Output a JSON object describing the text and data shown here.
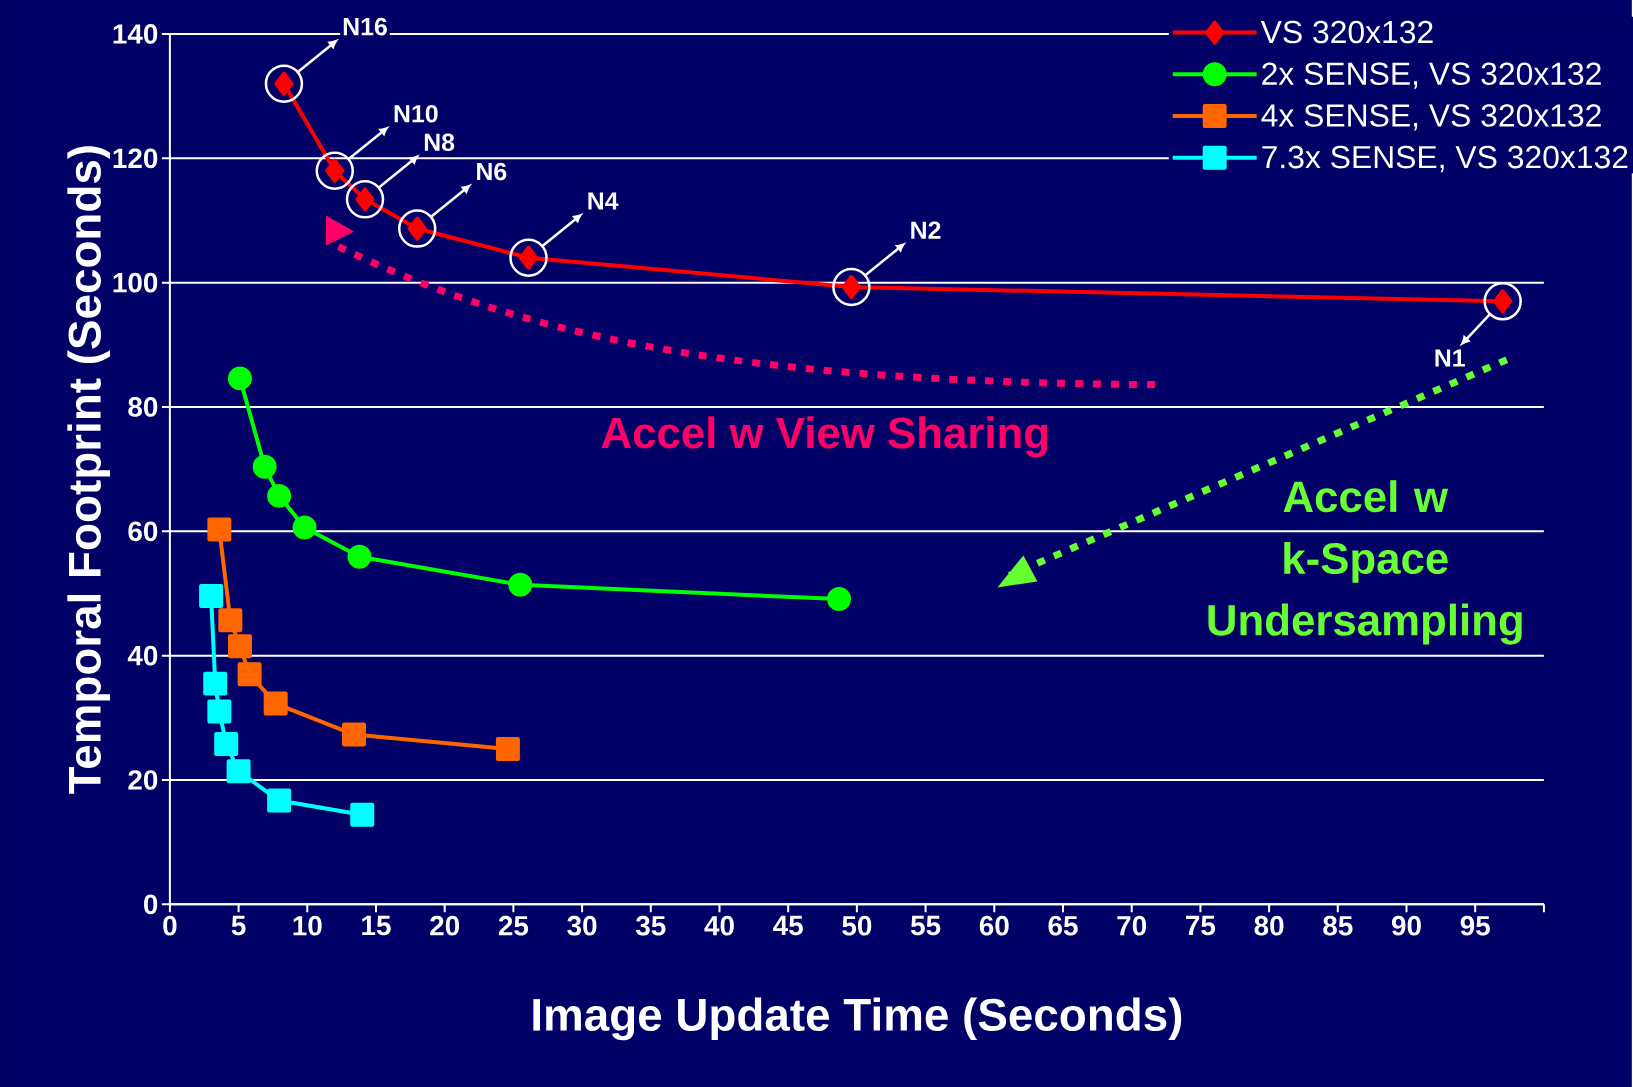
{
  "chart_data": {
    "type": "line",
    "xlabel": "Image Update Time (Seconds)",
    "ylabel": "Temporal Footprint (Seconds)",
    "xlim": [
      0,
      100
    ],
    "ylim": [
      0,
      140
    ],
    "xticks": [
      0,
      5,
      10,
      15,
      20,
      25,
      30,
      35,
      40,
      45,
      50,
      55,
      60,
      65,
      70,
      75,
      80,
      85,
      90,
      95,
      {
        "value": 100,
        "label": null
      }
    ],
    "yticks": [
      0,
      20,
      40,
      60,
      80,
      100,
      120,
      140
    ],
    "grid": "y",
    "legend": "top right",
    "series": [
      {
        "name": "VS 320x132",
        "color": "#ff0000",
        "marker": "diamond",
        "x": [
          8.3,
          12.0,
          14.2,
          18.0,
          26.1,
          49.6,
          97.0
        ],
        "values": [
          132,
          118,
          113.4,
          108.7,
          104,
          99.3,
          97
        ]
      },
      {
        "name": "2x SENSE, VS 320x132",
        "color": "#00ff00",
        "marker": "circle",
        "x": [
          5.1,
          6.9,
          7.95,
          9.8,
          13.8,
          25.5,
          48.7
        ],
        "values": [
          84.6,
          70.4,
          65.7,
          60.6,
          55.9,
          51.4,
          49.1
        ]
      },
      {
        "name": "4x SENSE, VS 320x132",
        "color": "#ff6600",
        "marker": "square",
        "x": [
          3.6,
          4.4,
          5.1,
          5.8,
          7.7,
          13.4,
          24.6
        ],
        "values": [
          60.3,
          45.7,
          41.5,
          37,
          32.3,
          27.3,
          25
        ]
      },
      {
        "name": "7.3x SENSE, VS 320x132",
        "color": "#00ffff",
        "marker": "square",
        "x": [
          3.0,
          3.3,
          3.6,
          4.1,
          5.0,
          7.95,
          14.0
        ],
        "values": [
          49.6,
          35.5,
          31,
          25.8,
          21.4,
          16.7,
          14.4
        ]
      }
    ],
    "annotations": [
      "N16",
      "N10",
      "N8",
      "N6",
      "N4",
      "N2",
      "N1",
      "Accel w View Sharing",
      "Accel w k-Space Undersampling"
    ]
  }
}
